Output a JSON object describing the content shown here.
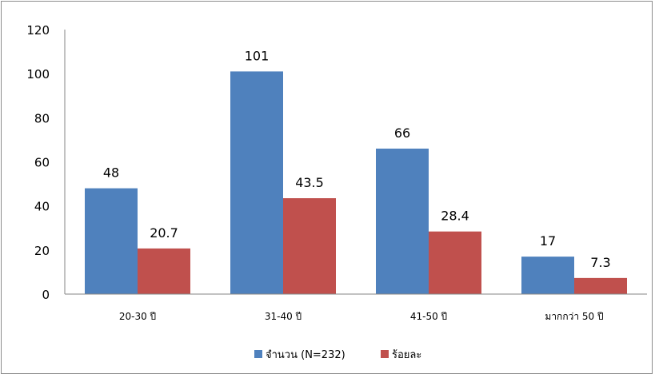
{
  "chart_data": {
    "type": "bar",
    "categories": [
      "20-30 ปี",
      "31-40 ปี",
      "41-50 ปี",
      "มากกว่า 50 ปี"
    ],
    "series": [
      {
        "name": "จำนวน (N=232)",
        "values": [
          48,
          101,
          66,
          17
        ],
        "labels": [
          "48",
          "101",
          "66",
          "17"
        ],
        "color": "#4f81bd"
      },
      {
        "name": "ร้อยละ",
        "values": [
          20.7,
          43.5,
          28.4,
          7.3
        ],
        "labels": [
          "20.7",
          "43.5",
          "28.4",
          "7.3"
        ],
        "color": "#c0504d"
      }
    ],
    "yticks": [
      "0",
      "20",
      "40",
      "60",
      "80",
      "100",
      "120"
    ],
    "ylim": [
      0,
      120
    ],
    "grid": false,
    "legend": "bottom"
  }
}
